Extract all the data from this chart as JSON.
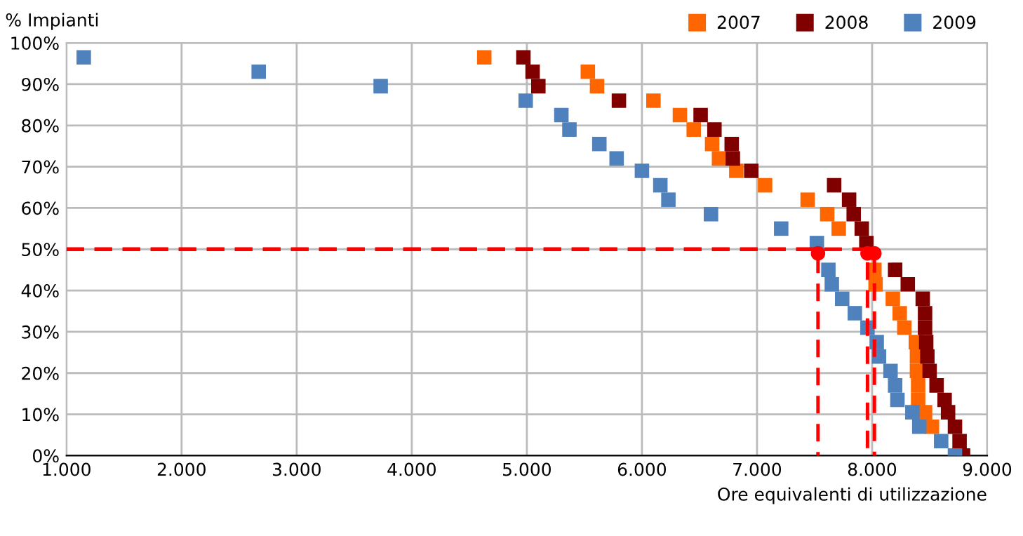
{
  "chart_data": {
    "type": "scatter",
    "xlabel": "Ore equivalenti di utilizzazione",
    "ylabel": "% Impianti",
    "xlim": [
      1000,
      9000
    ],
    "ylim": [
      0,
      100
    ],
    "xticks": [
      {
        "value": 1000,
        "label": "1.000"
      },
      {
        "value": 2000,
        "label": "2.000"
      },
      {
        "value": 3000,
        "label": "3.000"
      },
      {
        "value": 4000,
        "label": "4.000"
      },
      {
        "value": 5000,
        "label": "5.000"
      },
      {
        "value": 6000,
        "label": "6.000"
      },
      {
        "value": 7000,
        "label": "7.000"
      },
      {
        "value": 8000,
        "label": "8.000"
      },
      {
        "value": 9000,
        "label": "9.000"
      }
    ],
    "yticks": [
      {
        "value": 0,
        "label": "0%"
      },
      {
        "value": 10,
        "label": "10%"
      },
      {
        "value": 20,
        "label": "20%"
      },
      {
        "value": 30,
        "label": "30%"
      },
      {
        "value": 40,
        "label": "40%"
      },
      {
        "value": 50,
        "label": "50%"
      },
      {
        "value": 60,
        "label": "60%"
      },
      {
        "value": 70,
        "label": "70%"
      },
      {
        "value": 80,
        "label": "80%"
      },
      {
        "value": 90,
        "label": "90%"
      },
      {
        "value": 100,
        "label": "100%"
      }
    ],
    "grid": true,
    "legend": "top right",
    "marker": "square",
    "series": [
      {
        "name": "2007",
        "color": "#ff6600",
        "x": [
          4630,
          5530,
          5610,
          6100,
          6330,
          6450,
          6610,
          6670,
          6820,
          7070,
          7440,
          7610,
          7710,
          8020,
          8030,
          8180,
          8240,
          8280,
          8380,
          8390,
          8390,
          8400,
          8400,
          8460,
          8520,
          null
        ],
        "values": [
          96.5,
          93,
          89.5,
          86,
          82.5,
          79,
          75.5,
          72,
          69,
          65.5,
          62,
          58.5,
          55,
          45,
          41.5,
          38,
          34.5,
          31,
          27.5,
          24,
          20.5,
          17,
          13.5,
          10.5,
          7,
          null
        ]
      },
      {
        "name": "2008",
        "color": "#800000",
        "x": [
          4970,
          5050,
          5100,
          5800,
          6510,
          6630,
          6780,
          6790,
          6950,
          7670,
          7800,
          7840,
          7910,
          7950,
          null,
          8200,
          8310,
          8440,
          8460,
          8460,
          8470,
          8480,
          8500,
          8560,
          8630,
          8660,
          8720,
          8760,
          8790
        ],
        "values": [
          96.5,
          93,
          89.5,
          86,
          82.5,
          79,
          75.5,
          72,
          69,
          65.5,
          62,
          58.5,
          55,
          51.5,
          null,
          45,
          41.5,
          38,
          34.5,
          31,
          27.5,
          24,
          20.5,
          17,
          13.5,
          10.5,
          7,
          3.5,
          0
        ]
      },
      {
        "name": "2009",
        "color": "#4f81bd",
        "x": [
          1150,
          2670,
          3730,
          4990,
          5300,
          5370,
          5630,
          5780,
          6000,
          6160,
          6230,
          6600,
          7210,
          7520,
          null,
          7620,
          7650,
          7740,
          7850,
          7960,
          8040,
          8060,
          8160,
          8200,
          8220,
          8350,
          8410,
          8600,
          8720
        ],
        "values": [
          96.5,
          93,
          89.5,
          86,
          82.5,
          79,
          75.5,
          72,
          69,
          65.5,
          62,
          58.5,
          55,
          51.5,
          null,
          45,
          41.5,
          38,
          34.5,
          31,
          27.5,
          24,
          20.5,
          17,
          13.5,
          10.5,
          7,
          3.5,
          0
        ]
      },
      {
        "type": "line",
        "color": "#ff0000",
        "line_style": "dashed",
        "marker": "none",
        "x": [
          1000,
          7530,
          7530
        ],
        "values": [
          50,
          50,
          0
        ]
      },
      {
        "type": "line",
        "color": "#ff0000",
        "line_style": "dashed",
        "marker": "none",
        "x": [
          1000,
          7960,
          7960
        ],
        "values": [
          50,
          50,
          0
        ]
      },
      {
        "type": "line",
        "color": "#ff0000",
        "line_style": "dashed",
        "marker": "none",
        "x": [
          1000,
          8020,
          8020
        ],
        "values": [
          50,
          50,
          0
        ]
      },
      {
        "type": "scatter",
        "color": "#ff0000",
        "marker": "circle",
        "x": [
          7530,
          7960,
          8020
        ],
        "values": [
          49,
          49,
          49
        ]
      }
    ]
  }
}
